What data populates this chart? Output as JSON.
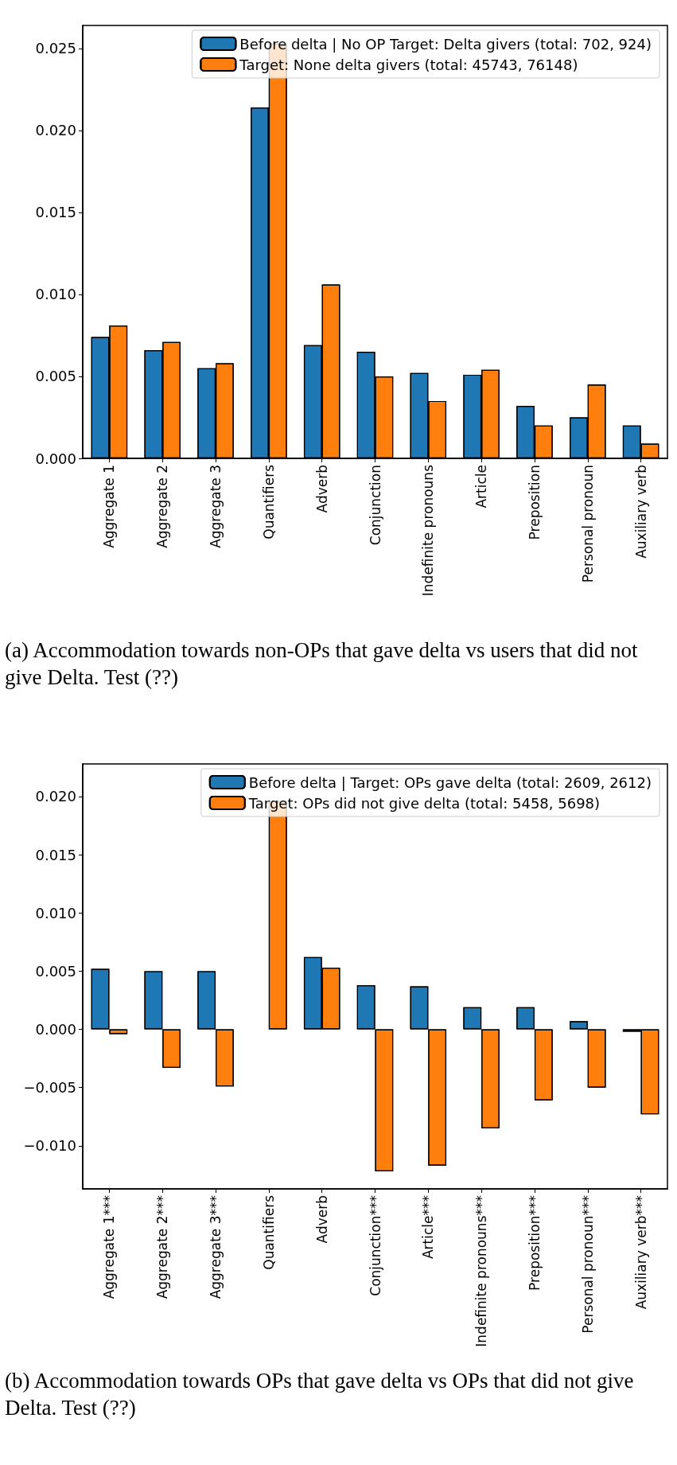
{
  "chart_data": [
    {
      "type": "bar",
      "categories": [
        "Aggregate 1",
        "Aggregate 2",
        "Aggregate 3",
        "Quantifiers",
        "Adverb",
        "Conjunction",
        "Indefinite pronouns",
        "Article",
        "Preposition",
        "Personal pronoun",
        "Auxiliary verb"
      ],
      "series": [
        {
          "name": "Before delta | No OP Target: Delta givers (total: 702, 924)",
          "color": "#1f77b4",
          "values": [
            0.0074,
            0.0066,
            0.0055,
            0.0214,
            0.0069,
            0.0065,
            0.0052,
            0.0051,
            0.0032,
            0.0025,
            0.002
          ]
        },
        {
          "name": "Target: None delta givers (total: 45743, 76148)",
          "color": "#ff7f0e",
          "values": [
            0.0081,
            0.0071,
            0.0058,
            0.0253,
            0.0106,
            0.005,
            0.0035,
            0.0054,
            0.002,
            0.0045,
            0.0009
          ]
        }
      ],
      "ylim": [
        0,
        0.0264
      ],
      "yticks": [
        {
          "value": 0,
          "label": "0.000"
        },
        {
          "value": 0.005,
          "label": "0.005"
        },
        {
          "value": 0.01,
          "label": "0.010"
        },
        {
          "value": 0.015,
          "label": "0.015"
        },
        {
          "value": 0.02,
          "label": "0.020"
        },
        {
          "value": 0.025,
          "label": "0.025"
        }
      ],
      "grid": false,
      "legend": "top right",
      "annotations": [
        "(a) Accommodation towards non-OPs that gave delta vs users that did not give Delta. Test (??)"
      ]
    },
    {
      "type": "bar",
      "categories": [
        "Aggregate 1***",
        "Aggregate 2***",
        "Aggregate 3***",
        "Quantifiers",
        "Adverb",
        "Conjunction***",
        "Article***",
        "Indefinite pronouns***",
        "Preposition***",
        "Personal pronoun***",
        "Auxiliary verb***"
      ],
      "series": [
        {
          "name": "Before delta | Target: OPs gave delta (total: 2609, 2612)",
          "color": "#1f77b4",
          "values": [
            0.0052,
            0.005,
            0.005,
            null,
            0.0062,
            0.0038,
            0.0037,
            0.0019,
            0.0019,
            0.0007,
            -0.0002
          ]
        },
        {
          "name": "Target: OPs did not give delta (total: 5458, 5698)",
          "color": "#ff7f0e",
          "values": [
            -0.0004,
            -0.0033,
            -0.0049,
            0.0196,
            0.0053,
            -0.0122,
            -0.0117,
            -0.0085,
            -0.0061,
            -0.005,
            -0.0073
          ]
        }
      ],
      "ylim": [
        -0.0137,
        0.0228
      ],
      "yticks": [
        {
          "value": -0.01,
          "label": "−0.010"
        },
        {
          "value": -0.005,
          "label": "−0.005"
        },
        {
          "value": 0,
          "label": "0.000"
        },
        {
          "value": 0.005,
          "label": "0.005"
        },
        {
          "value": 0.01,
          "label": "0.010"
        },
        {
          "value": 0.015,
          "label": "0.015"
        },
        {
          "value": 0.02,
          "label": "0.020"
        }
      ],
      "grid": false,
      "legend": "top right",
      "annotations": [
        "(b) Accommodation towards OPs that gave delta vs OPs that did not give Delta. Test (??)"
      ]
    }
  ]
}
